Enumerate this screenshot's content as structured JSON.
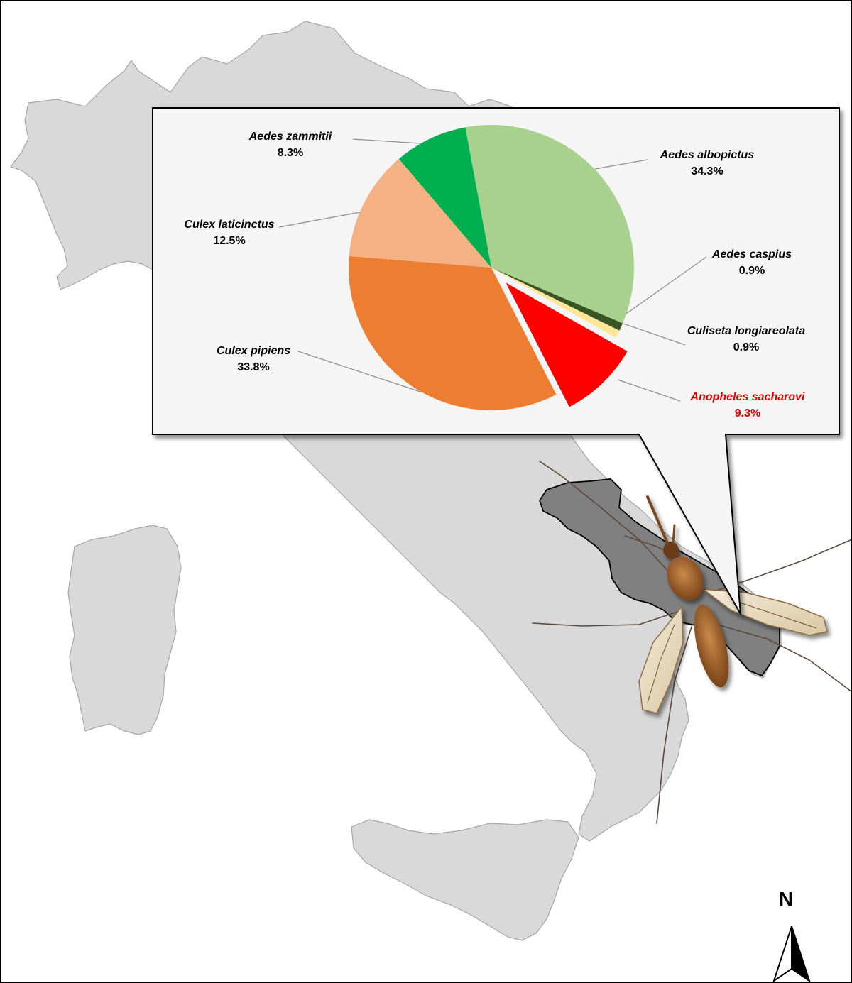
{
  "chart_data": {
    "type": "pie",
    "slices": [
      {
        "label": "Aedes albopictus",
        "value": 34.3,
        "display": "34.3%",
        "color": "#a9d18e"
      },
      {
        "label": "Aedes caspius",
        "value": 0.9,
        "display": "0.9%",
        "color": "#375623"
      },
      {
        "label": "Culiseta longiareolata",
        "value": 0.9,
        "display": "0.9%",
        "color": "#ffe699"
      },
      {
        "label": "Anopheles sacharovi",
        "value": 9.3,
        "display": "9.3%",
        "color": "#ff0000",
        "exploded": true,
        "label_color": "#e00000"
      },
      {
        "label": "Culex pipiens",
        "value": 33.8,
        "display": "33.8%",
        "color": "#ed7d31"
      },
      {
        "label": "Culex laticinctus",
        "value": 12.5,
        "display": "12.5%",
        "color": "#f4b183"
      },
      {
        "label": "Aedes zammitii",
        "value": 8.3,
        "display": "8.3%",
        "color": "#00b050"
      }
    ],
    "legend": "none",
    "data_labels": "outside-with-leader-lines"
  },
  "map": {
    "north_label": "N",
    "land_color": "#d9d9d9",
    "highlight_region_color": "#7f7f7f"
  }
}
